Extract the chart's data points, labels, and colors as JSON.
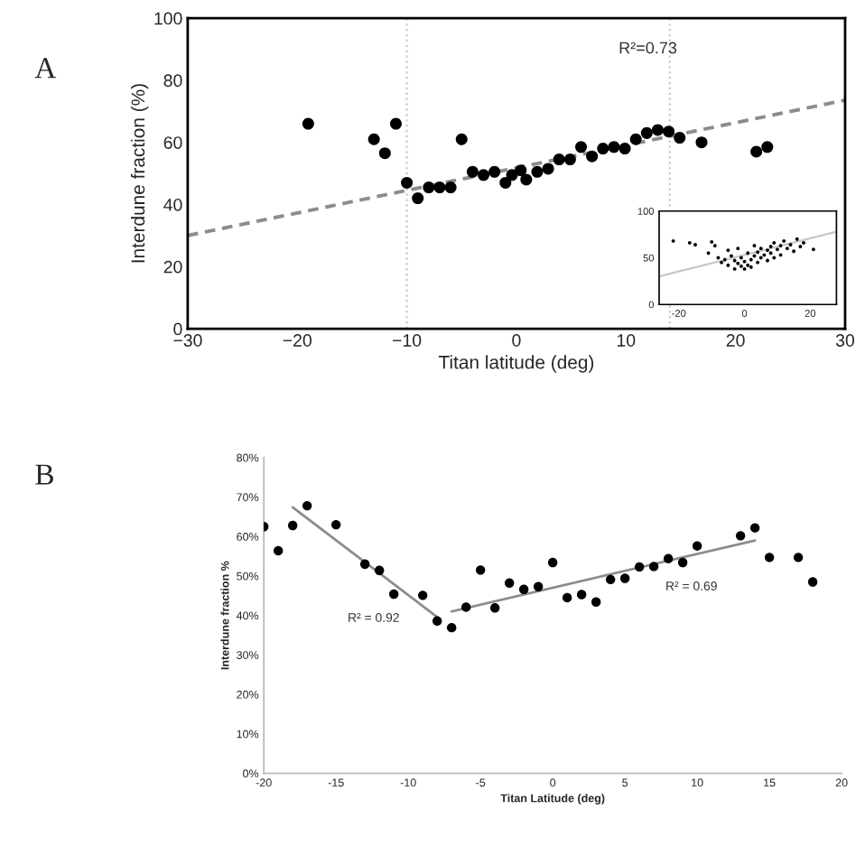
{
  "chart_data": [
    {
      "type": "scatter",
      "xlabel": "Titan latitude (deg)",
      "ylabel": "Interdune fraction (%)",
      "annotations": [
        "A",
        "R²=0.73"
      ],
      "xlim": [
        -30,
        30
      ],
      "ylim": [
        0,
        100
      ],
      "xticks": [
        {
          "value": -30,
          "label": "−30"
        },
        {
          "value": -20,
          "label": "−20"
        },
        {
          "value": -10,
          "label": "−10"
        },
        0,
        10,
        20,
        30
      ],
      "yticks": [
        0,
        20,
        40,
        60,
        80,
        100
      ],
      "grid": false,
      "ref_lines": [
        {
          "axis": "x",
          "value": -10,
          "color": "#c8c8c8",
          "line_style": "dotted"
        },
        {
          "axis": "x",
          "value": 14,
          "color": "#c8c8c8",
          "line_style": "dotted"
        }
      ],
      "series": [
        {
          "marker": "circle",
          "color": "#000000",
          "x": [
            -19,
            -13,
            -12,
            -11,
            -10,
            -9,
            -8,
            -7,
            -6,
            -5,
            -4,
            -3,
            -2,
            -1,
            -0.4,
            0.4,
            0.9,
            1.9,
            2.9,
            3.9,
            4.9,
            5.9,
            6.9,
            7.9,
            8.9,
            9.9,
            10.9,
            11.9,
            12.9,
            13.9,
            14.9,
            16.9,
            21.9,
            22.9
          ],
          "values": [
            66,
            61,
            56.5,
            66,
            47,
            42,
            45.5,
            45.5,
            45.5,
            61,
            50.5,
            49.5,
            50.5,
            47,
            49.5,
            51,
            48,
            50.5,
            51.5,
            54.5,
            54.5,
            58.5,
            55.5,
            58,
            58.5,
            58,
            61,
            63,
            64,
            63.5,
            61.5,
            60,
            57,
            58.5
          ]
        },
        {
          "type": "line",
          "marker": "none",
          "color": "#8c8c8c",
          "line_style": "dashed",
          "x": [
            -30,
            30
          ],
          "values": [
            30,
            73.6
          ]
        }
      ]
    },
    {
      "type": "scatter",
      "xlim": [
        -26,
        28
      ],
      "ylim": [
        0,
        100
      ],
      "xticks": [
        -20,
        0,
        20
      ],
      "yticks": [
        0,
        50,
        100
      ],
      "grid": false,
      "series": [
        {
          "marker": "circle",
          "color": "#000000",
          "x": [
            -21.7,
            -16.7,
            -15,
            -10,
            -9,
            -11,
            -8,
            -7,
            -6,
            -5,
            -4,
            -3,
            -2,
            -1,
            0,
            0,
            1,
            1,
            2,
            2,
            3,
            -3,
            -1,
            4,
            4,
            5,
            5,
            6,
            7,
            7,
            8,
            8,
            9,
            9,
            10,
            11,
            11,
            12,
            13,
            14,
            15,
            16,
            17,
            18,
            -5,
            -2,
            3,
            21
          ],
          "values": [
            68,
            66,
            64,
            67,
            63,
            55,
            50,
            45,
            48,
            42,
            52,
            47,
            44,
            50,
            38,
            46,
            55,
            42,
            48,
            40,
            52,
            38,
            41,
            45,
            56,
            50,
            60,
            53,
            47,
            58,
            62,
            55,
            50,
            66,
            59,
            63,
            53,
            68,
            60,
            64,
            57,
            70,
            62,
            66,
            58,
            60,
            63,
            59
          ]
        },
        {
          "type": "line",
          "marker": "none",
          "color": "#c8c8c8",
          "line_style": "solid",
          "x": [
            -26,
            28
          ],
          "values": [
            30,
            78
          ]
        }
      ]
    },
    {
      "type": "scatter",
      "xlabel": "Titan Latitude (deg)",
      "ylabel": "Interdune fraction %",
      "annotations": [
        "B",
        "R² = 0.92",
        "R² = 0.69"
      ],
      "xlim": [
        -20,
        20
      ],
      "ylim": [
        0,
        80
      ],
      "xticks": [
        -20,
        -15,
        -10,
        -5,
        0,
        5,
        10,
        15,
        20
      ],
      "yticks": [
        {
          "value": 0,
          "label": "0%"
        },
        {
          "value": 10,
          "label": "10%"
        },
        {
          "value": 20,
          "label": "20%"
        },
        {
          "value": 30,
          "label": "30%"
        },
        {
          "value": 40,
          "label": "40%"
        },
        {
          "value": 50,
          "label": "50%"
        },
        {
          "value": 60,
          "label": "60%"
        },
        {
          "value": 70,
          "label": "70%"
        },
        {
          "value": 80,
          "label": "80%"
        }
      ],
      "grid": false,
      "series": [
        {
          "marker": "circle",
          "color": "#000000",
          "x": [
            -20,
            -19,
            -18,
            -17,
            -15,
            -13,
            -12,
            -11,
            -9,
            -8,
            -7,
            -6,
            -5,
            -4,
            -3,
            -2,
            -1,
            0,
            1,
            2,
            3,
            4,
            5,
            6,
            7,
            8,
            9,
            10,
            13,
            14,
            15,
            17,
            18
          ],
          "values": [
            62.5,
            56.4,
            62.8,
            67.8,
            63,
            53,
            51.4,
            45.4,
            45.1,
            38.6,
            36.9,
            42.1,
            51.5,
            41.9,
            48.2,
            46.6,
            47.3,
            53.4,
            44.5,
            45.3,
            43.4,
            49.1,
            49.4,
            52.3,
            52.4,
            54.4,
            53.4,
            57.6,
            60.2,
            62.2,
            54.7,
            54.7,
            48.5
          ]
        },
        {
          "type": "line",
          "marker": "none",
          "color": "#8c8c8c",
          "line_style": "solid",
          "x": [
            -18,
            -8
          ],
          "values": [
            67.4,
            39.6
          ]
        },
        {
          "type": "line",
          "marker": "none",
          "color": "#8c8c8c",
          "line_style": "solid",
          "x": [
            -7,
            14
          ],
          "values": [
            41,
            59
          ]
        }
      ]
    }
  ]
}
